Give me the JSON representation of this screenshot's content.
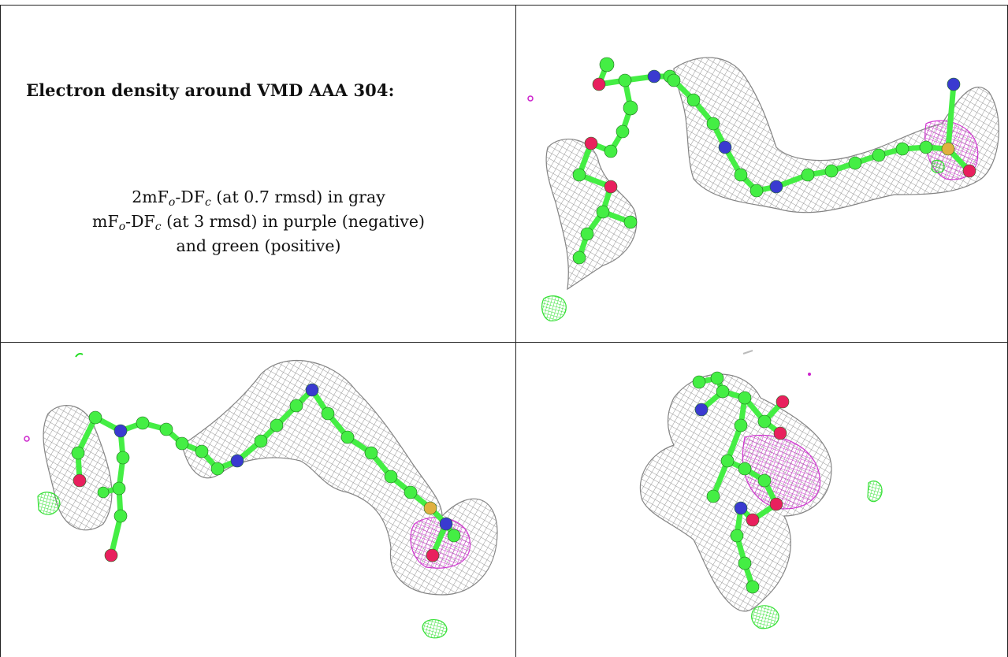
{
  "caption": {
    "title": "Electron density around VMD AAA 304:",
    "line1": {
      "a": "2mF",
      "sub1": "o",
      "b": "-DF",
      "sub2": "c",
      "rest": " (at 0.7 rmsd) in gray"
    },
    "line2": {
      "a": "mF",
      "sub1": "o",
      "b": "-DF",
      "sub2": "c",
      "rest": " (at 3 rmsd) in purple (negative)"
    },
    "line3": "and green (positive)"
  },
  "colors": {
    "mesh_gray": "#8a8a8a",
    "negative_purple": "#cc22cc",
    "positive_green": "#22dd22",
    "carbon": "#44ee44",
    "nitrogen": "#3a3ad0",
    "oxygen": "#e8205e",
    "sulfur": "#e0b040"
  },
  "panels": [
    {
      "name": "top-right-view"
    },
    {
      "name": "bottom-left-view"
    },
    {
      "name": "bottom-right-view"
    }
  ]
}
